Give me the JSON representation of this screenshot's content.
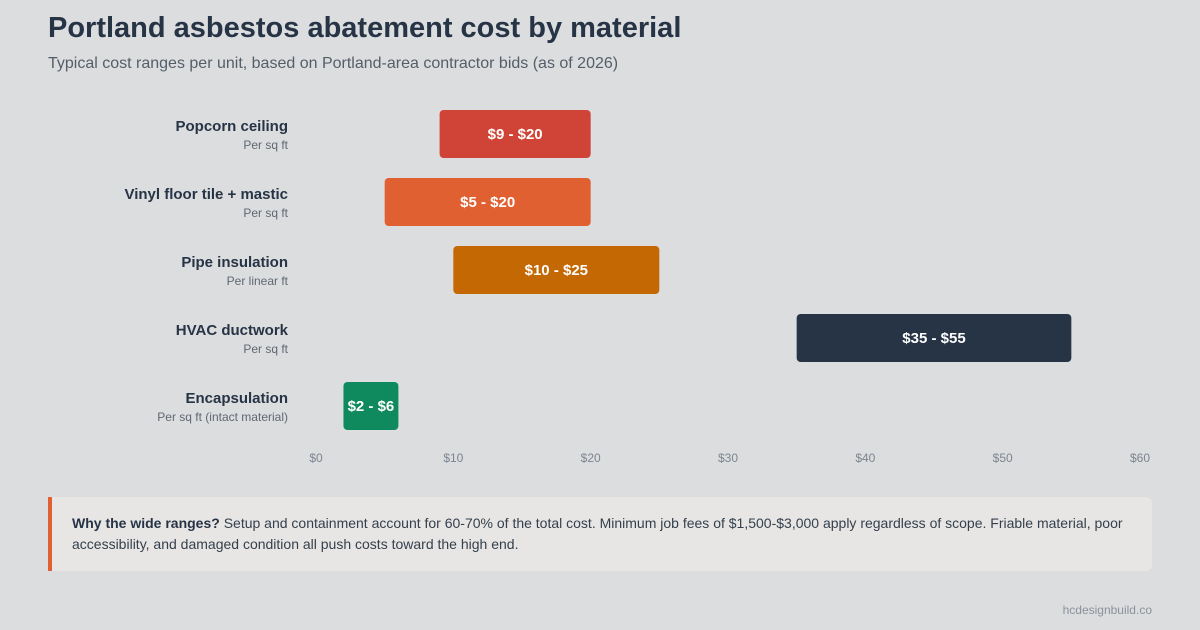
{
  "header": {
    "title": "Portland asbestos abatement cost by material",
    "subtitle": "Typical cost ranges per unit, based on Portland-area contractor bids (as of 2026)"
  },
  "chart_data": {
    "type": "bar",
    "orientation": "horizontal-range",
    "categories": [
      "Popcorn ceiling",
      "Vinyl floor tile + mastic",
      "Pipe insulation",
      "HVAC ductwork",
      "Encapsulation"
    ],
    "units": [
      "Per sq ft",
      "Per sq ft",
      "Per linear ft",
      "Per sq ft",
      "Per sq ft (intact material)"
    ],
    "series": [
      {
        "ranges": [
          [
            9,
            20
          ],
          [
            5,
            20
          ],
          [
            10,
            25
          ],
          [
            35,
            55
          ],
          [
            2,
            6
          ]
        ],
        "labels": [
          "$9 - $20",
          "$5 - $20",
          "$10 - $25",
          "$35 - $55",
          "$2 - $6"
        ],
        "colors": [
          "#cf4436",
          "#e06032",
          "#c46804",
          "#263445",
          "#0f8a5f"
        ]
      }
    ],
    "xlim": [
      0,
      60
    ],
    "xticks": [
      0,
      10,
      20,
      30,
      40,
      50,
      60
    ],
    "xtick_labels": [
      "$0",
      "$10",
      "$20",
      "$30",
      "$40",
      "$50",
      "$60"
    ],
    "grid": false,
    "legend": "none"
  },
  "note": {
    "bold": "Why the wide ranges?",
    "text": " Setup and containment account for 60-70% of the total cost. Minimum job fees of $1,500-$3,000 apply regardless of scope. Friable material, poor accessibility, and damaged condition all push costs toward the high end."
  },
  "footer": {
    "credit": "hcdesignbuild.co"
  }
}
